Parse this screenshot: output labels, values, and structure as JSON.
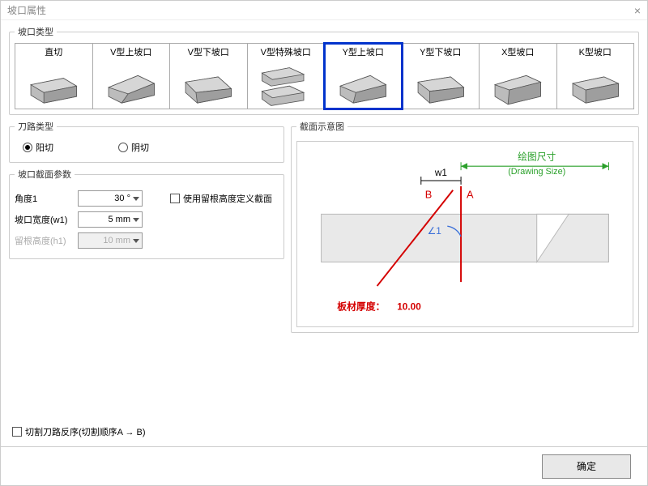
{
  "window": {
    "title": "坡口属性"
  },
  "groove_type": {
    "legend": "坡口类型",
    "items": [
      {
        "label": "直切"
      },
      {
        "label": "V型上坡口"
      },
      {
        "label": "V型下坡口"
      },
      {
        "label": "V型特殊坡口"
      },
      {
        "label": "Y型上坡口"
      },
      {
        "label": "Y型下坡口"
      },
      {
        "label": "X型坡口"
      },
      {
        "label": "K型坡口"
      }
    ],
    "selected_index": 4
  },
  "cut_type": {
    "legend": "刀路类型",
    "options": [
      {
        "label": "阳切",
        "checked": true
      },
      {
        "label": "阴切",
        "checked": false
      }
    ]
  },
  "params": {
    "legend": "坡口截面参数",
    "angle": {
      "label": "角度1",
      "value": "30 °"
    },
    "width": {
      "label": "坡口宽度(w1)",
      "value": "5 mm"
    },
    "root": {
      "label": "留根高度(h1)",
      "value": "10 mm",
      "disabled": true
    },
    "use_root_checkbox": {
      "label": "使用留根高度定义截面",
      "checked": false
    }
  },
  "preview": {
    "legend": "截面示意图",
    "drawing_size_cn": "绘图尺寸",
    "drawing_size_en": "(Drawing Size)",
    "w1": "w1",
    "angle_label": "∠1",
    "labelA": "A",
    "labelB": "B",
    "thickness_label": "板材厚度：",
    "thickness_value": "10.00",
    "colors": {
      "green": "#2aa02a",
      "red": "#d40000",
      "blue": "#3a6fd8",
      "panel_fill": "#e9e9e9",
      "panel_stroke": "#b8b8b8"
    }
  },
  "reverse_checkbox": {
    "label": "切割刀路反序(切割顺序A → B)",
    "checked": false
  },
  "footer": {
    "ok": "确定"
  }
}
